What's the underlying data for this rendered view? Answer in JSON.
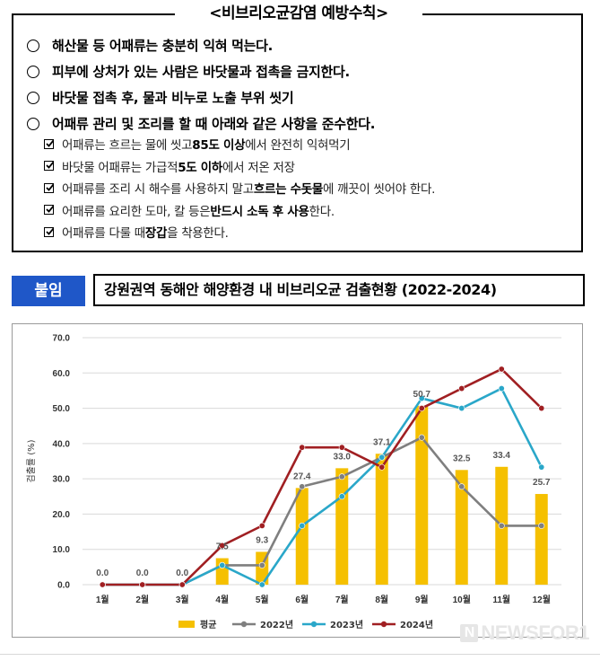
{
  "prevention": {
    "title": "<비브리오균감염 예방수칙>",
    "items": [
      "해산물 등 어패류는 충분히 익혀 먹는다.",
      "피부에 상처가 있는 사람은 바닷물과 접촉을 금지한다.",
      "바닷물 접촉 후, 물과 비누로 노출 부위 씻기",
      "어패류 관리 및 조리를 할 때 아래와 같은 사항을 준수한다."
    ],
    "subitems": [
      {
        "pre": "어패류는 흐르는 물에 씻고 ",
        "bold": "85도 이상",
        "post": "에서 완전히 익혀먹기"
      },
      {
        "pre": "바닷물 어패류는 가급적 ",
        "bold": "5도 이하",
        "post": "에서 저온 저장"
      },
      {
        "pre": "어패류를 조리 시 해수를 사용하지 말고 ",
        "bold": "흐르는 수돗물",
        "post": "에 깨끗이 씻어야 한다."
      },
      {
        "pre": "어패류를 요리한 도마, 칼 등은 ",
        "bold": "반드시 소독 후 사용",
        "post": "한다."
      },
      {
        "pre": "어패류를 다룰 때 ",
        "bold": "장갑",
        "post": "을 착용한다."
      }
    ]
  },
  "attachment": {
    "badge": "붙임",
    "title": "강원권역 동해안 해양환경 내 비브리오균 검출현황 (2022-2024)"
  },
  "chart_data": {
    "type": "bar+line",
    "categories": [
      "1월",
      "2월",
      "3월",
      "4월",
      "5월",
      "6월",
      "7월",
      "8월",
      "9월",
      "10월",
      "11월",
      "12월"
    ],
    "ylabel": "검출률 (%)",
    "ylim": [
      0,
      70
    ],
    "yticks": [
      "0.0",
      "10.0",
      "20.0",
      "30.0",
      "40.0",
      "50.0",
      "60.0",
      "70.0"
    ],
    "grid": true,
    "legend_position": "bottom",
    "bar_series": {
      "name": "평균",
      "color": "#f5c000",
      "values": [
        0.0,
        0.0,
        0.0,
        7.5,
        9.3,
        27.4,
        33.0,
        37.1,
        50.7,
        32.5,
        33.4,
        25.7
      ],
      "labels": [
        "0.0",
        "0.0",
        "0.0",
        "7.5",
        "9.3",
        "27.4",
        "33.0",
        "37.1",
        "50.7",
        "32.5",
        "33.4",
        "25.7"
      ]
    },
    "series": [
      {
        "name": "2022년",
        "color": "#7f7f7f",
        "values": [
          0,
          0,
          0,
          5.5,
          5.5,
          27.8,
          30.6,
          36.1,
          41.7,
          27.8,
          16.7,
          16.7
        ]
      },
      {
        "name": "2023년",
        "color": "#2aa7c9",
        "values": [
          0,
          0,
          0,
          5.5,
          0,
          16.7,
          25.0,
          36.1,
          52.8,
          50.0,
          55.6,
          33.3
        ]
      },
      {
        "name": "2024년",
        "color": "#a01f22",
        "values": [
          0,
          0,
          0,
          11.1,
          16.7,
          38.9,
          38.9,
          33.3,
          50.0,
          55.6,
          61.1,
          50.0
        ]
      }
    ]
  },
  "watermark": {
    "icon": "N",
    "text": "NEWSFOR1"
  }
}
